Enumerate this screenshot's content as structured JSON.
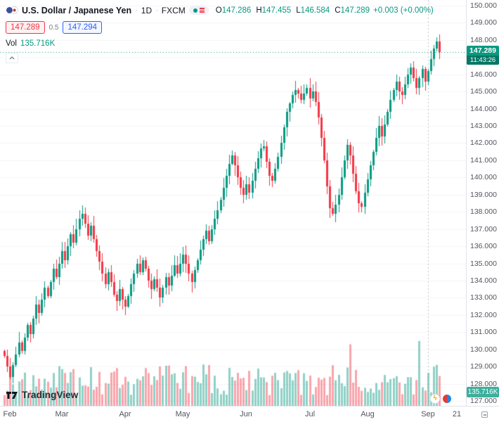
{
  "legend": {
    "title": "U.S. Dollar / Japanese Yen",
    "sep": "·",
    "interval": "1D",
    "exchange": "FXCM",
    "ohlc": {
      "o_label": "O",
      "o": "147.286",
      "h_label": "H",
      "h": "147.455",
      "l_label": "L",
      "l": "146.584",
      "c_label": "C",
      "c": "147.289",
      "change": "+0.003 (+0.00%)"
    },
    "quote": {
      "bid": "147.289",
      "spread": "0.5",
      "ask": "147.294"
    },
    "volume_row": {
      "label": "Vol",
      "value": "135.716K"
    }
  },
  "price_tag": {
    "price": "147.289",
    "time": "11:43:26"
  },
  "volume_tag": {
    "value": "135.716K"
  },
  "footer": {
    "brand": "TradingView"
  },
  "colors": {
    "up": "#089981",
    "down": "#f23645",
    "bid": "#f23645",
    "ask": "#2962ff",
    "last_price_line": "#089981",
    "axis_text": "#51555e"
  },
  "chart_data": {
    "type": "candlestick",
    "title": "U.S. Dollar / Japanese Yen",
    "symbol": "USDJPY",
    "interval": "1D",
    "exchange": "FXCM",
    "legend_position": "top-left",
    "grid": "faint",
    "y_axis": {
      "min": 127.0,
      "max": 150.0,
      "tick_step": 1.0,
      "decimals": 3,
      "side": "right"
    },
    "x_axis": {
      "ticks": [
        {
          "label": "Feb",
          "index": 0
        },
        {
          "label": "Mar",
          "index": 20
        },
        {
          "label": "Apr",
          "index": 42
        },
        {
          "label": "May",
          "index": 62
        },
        {
          "label": "Jun",
          "index": 84
        },
        {
          "label": "Jul",
          "index": 106
        },
        {
          "label": "Aug",
          "index": 126
        },
        {
          "label": "Sep",
          "index": 147
        },
        {
          "label": "21",
          "index": 157
        }
      ]
    },
    "first_open": 129.9,
    "closes": [
      129.6,
      129.0,
      128.4,
      129.1,
      129.7,
      130.4,
      129.9,
      130.7,
      131.4,
      130.9,
      131.8,
      132.6,
      132.1,
      132.9,
      133.6,
      133.1,
      133.9,
      134.7,
      134.2,
      135.0,
      135.7,
      135.2,
      136.0,
      136.7,
      136.2,
      137.0,
      137.6,
      137.9,
      137.3,
      136.6,
      137.2,
      136.4,
      135.7,
      135.1,
      134.4,
      133.8,
      134.5,
      133.9,
      133.2,
      132.8,
      133.5,
      132.9,
      132.5,
      133.1,
      133.8,
      134.4,
      135.0,
      134.5,
      135.2,
      134.7,
      134.0,
      133.5,
      134.1,
      133.6,
      133.0,
      133.6,
      134.2,
      133.7,
      134.3,
      134.9,
      134.4,
      135.0,
      135.5,
      135.0,
      134.4,
      133.9,
      134.6,
      135.2,
      135.8,
      136.4,
      136.9,
      136.3,
      137.0,
      137.6,
      138.1,
      138.7,
      139.4,
      140.1,
      140.8,
      141.3,
      140.7,
      140.0,
      139.4,
      139.0,
      139.6,
      139.1,
      139.8,
      140.5,
      141.1,
      141.7,
      141.8,
      140.9,
      140.1,
      139.8,
      140.5,
      141.2,
      142.0,
      142.9,
      143.8,
      144.3,
      144.8,
      145.1,
      144.9,
      144.5,
      144.9,
      145.2,
      144.6,
      145.0,
      144.4,
      143.5,
      142.3,
      141.0,
      139.5,
      138.2,
      137.9,
      138.4,
      139.0,
      140.0,
      141.0,
      141.9,
      141.3,
      140.2,
      139.2,
      138.5,
      138.3,
      139.1,
      139.9,
      140.7,
      141.5,
      142.3,
      143.0,
      142.4,
      143.1,
      143.8,
      144.5,
      145.1,
      145.6,
      145.0,
      144.8,
      145.4,
      146.0,
      146.4,
      145.8,
      145.2,
      145.8,
      146.3,
      145.6,
      146.2,
      146.9,
      147.5,
      147.9,
      147.289
    ],
    "last_price": 147.289,
    "last_price_time": "11:43:26",
    "open": 147.286,
    "high": 147.455,
    "low": 146.584,
    "close": 147.289,
    "change": 0.003,
    "change_pct": 0.0,
    "bid": 147.289,
    "ask": 147.294,
    "spread": 0.5,
    "volume_display": "135.716K",
    "volume_base_range": [
      0.16,
      0.62
    ],
    "volume_spikes": {
      "20": 0.55,
      "56": 0.6,
      "97": 0.5,
      "120": 0.92,
      "144": 0.97
    },
    "session_break_index": 147,
    "up_color": "#089981",
    "down_color": "#f23645"
  }
}
